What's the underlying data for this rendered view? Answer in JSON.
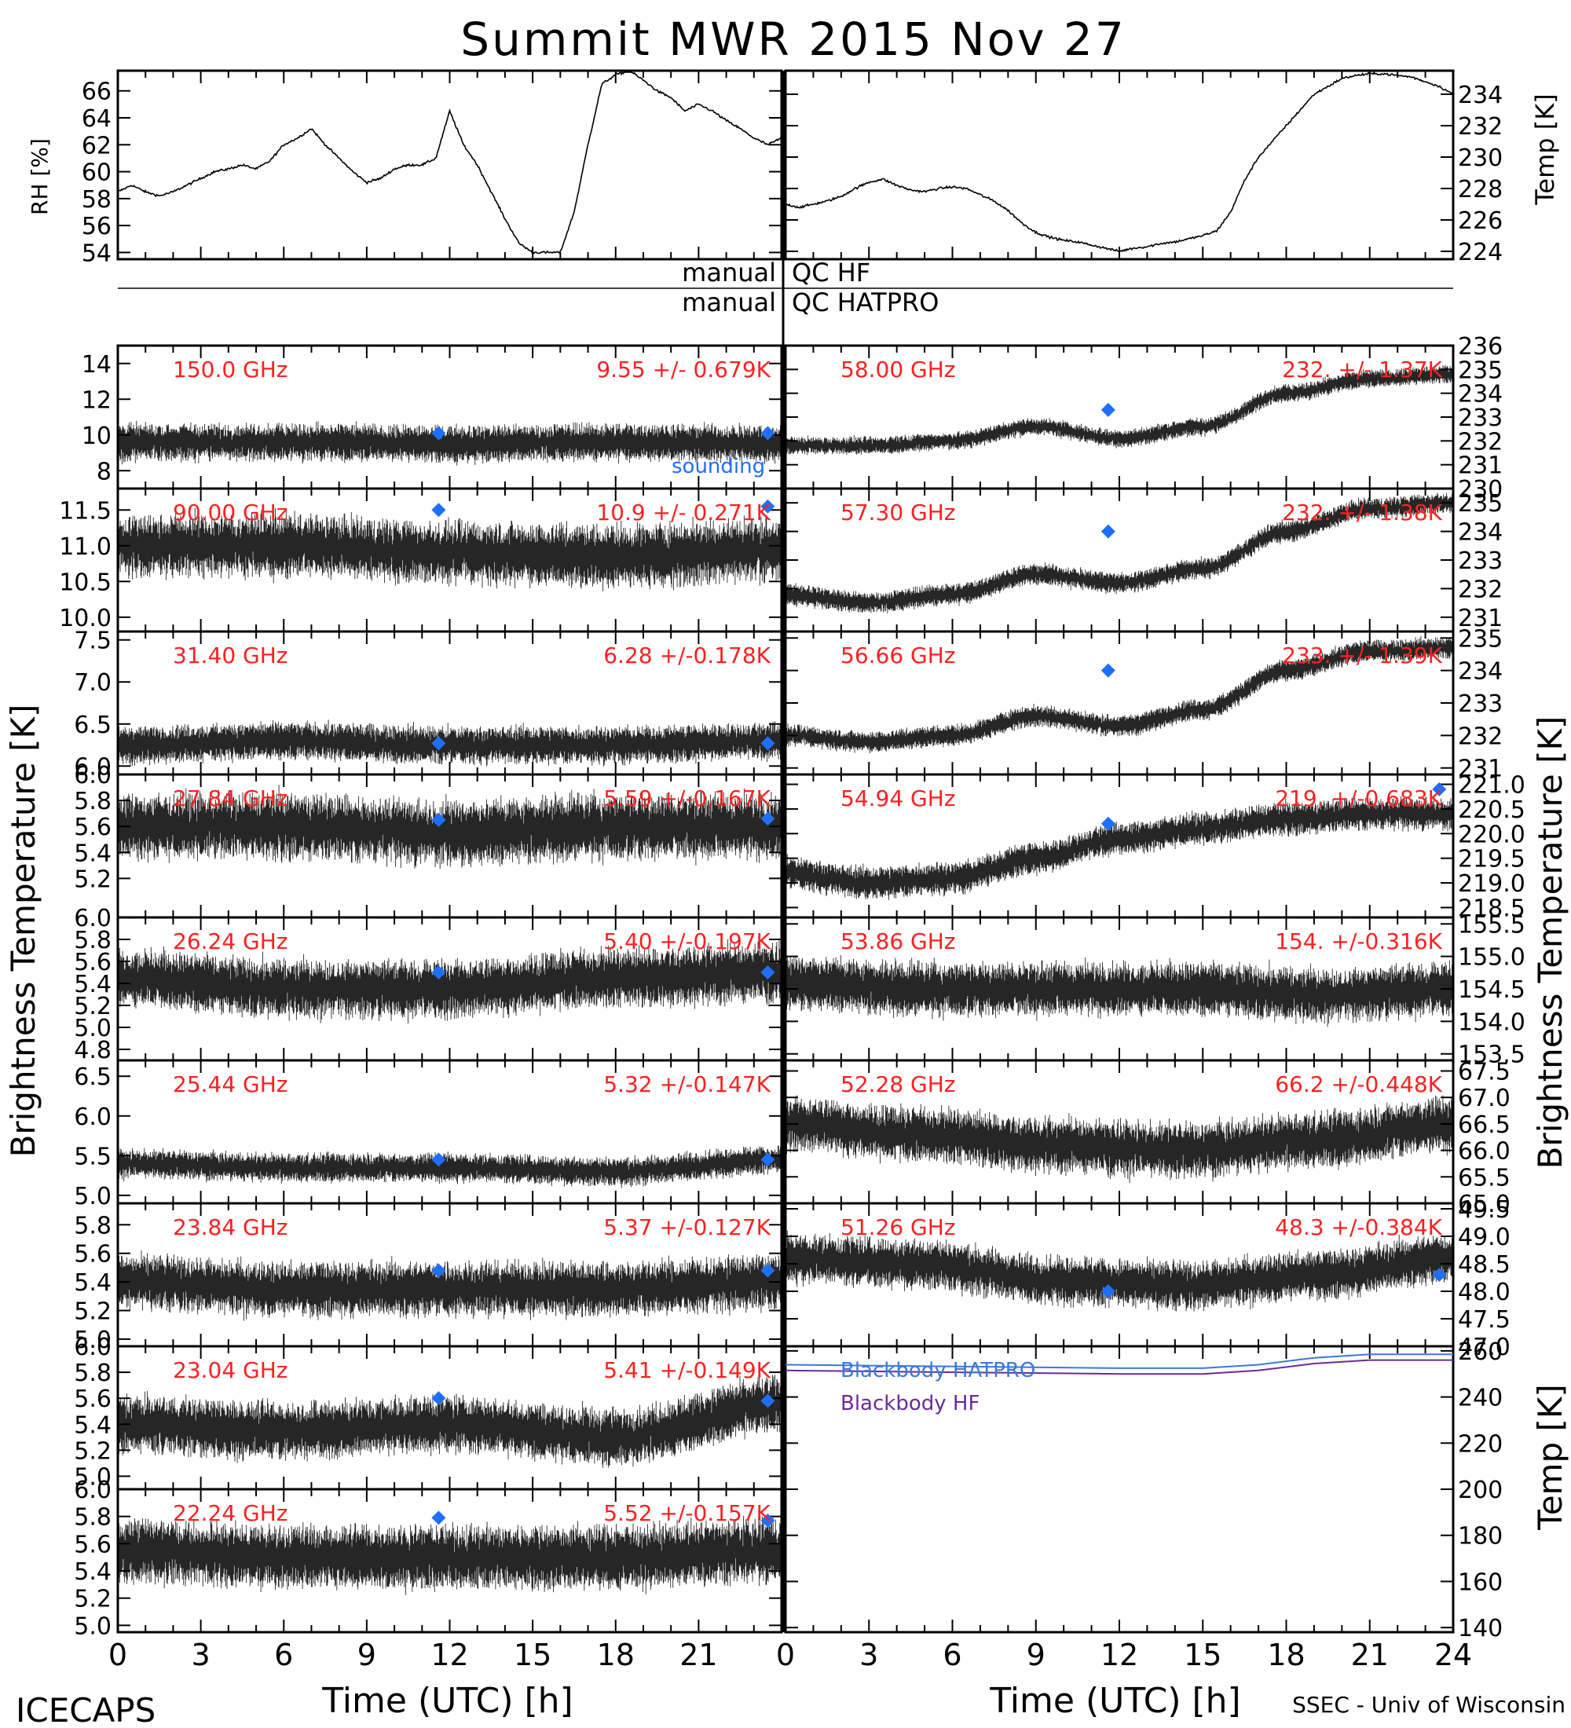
{
  "title": "Summit MWR 2015 Nov 27",
  "footer": {
    "left": "ICECAPS",
    "right": "SSEC - Univ of Wisconsin"
  },
  "colors": {
    "data": "#000000",
    "label": "#ff2020",
    "sounding": "#1f6fff",
    "bb_hatpro": "#3a7ad8",
    "bb_hf": "#6a2a9a"
  },
  "left_column_label": "Brightness Temperature [K]",
  "right_column_label": "Brightness Temperature [K]",
  "xaxis": {
    "label": "Time (UTC) [h]",
    "ticks": [
      "0",
      "3",
      "6",
      "9",
      "12",
      "15",
      "18",
      "21"
    ],
    "right_ticks": [
      "0",
      "3",
      "6",
      "9",
      "12",
      "15",
      "18",
      "21",
      "24"
    ]
  },
  "qc": {
    "hf_left": "manual",
    "hf_right": "QC HF",
    "hatpro_left": "manual",
    "hatpro_right": "QC HATPRO"
  },
  "sounding_label": "sounding",
  "chart_data": [
    {
      "type": "line",
      "name": "RH",
      "ylabel": "RH [%]",
      "ylim": [
        53.5,
        67.5
      ],
      "yticks": [
        "54",
        "56",
        "58",
        "60",
        "62",
        "64",
        "66"
      ],
      "xlim": [
        0,
        24
      ],
      "x": [
        0,
        0.5,
        1,
        1.5,
        2,
        2.5,
        3,
        3.5,
        4,
        4.5,
        5,
        5.5,
        6,
        6.5,
        7,
        7.5,
        8,
        8.5,
        9,
        9.5,
        10,
        10.5,
        11,
        11.5,
        12,
        12.5,
        13,
        13.5,
        14,
        14.5,
        15,
        15.5,
        16,
        16.5,
        17,
        17.5,
        18,
        18.5,
        19,
        19.5,
        20,
        20.5,
        21,
        21.5,
        22,
        22.5,
        23,
        23.5,
        24
      ],
      "y": [
        58.5,
        59,
        58.5,
        58.2,
        58.5,
        59,
        59.5,
        60,
        60.2,
        60.5,
        60.2,
        60.8,
        62,
        62.5,
        63.2,
        62,
        61,
        60,
        59.2,
        59.5,
        60.2,
        60.5,
        60.5,
        61,
        64.5,
        62,
        60.5,
        58.5,
        56.5,
        54.7,
        54,
        54,
        54,
        57,
        62,
        66.5,
        67.2,
        67.5,
        66.8,
        66,
        65.5,
        64.5,
        65,
        64.5,
        63.8,
        63.2,
        62.5,
        62,
        62.5
      ]
    },
    {
      "type": "line",
      "name": "Temp",
      "ylabel": "Temp [K]",
      "ylim": [
        223.5,
        235.5
      ],
      "yticks": [
        "224",
        "226",
        "228",
        "230",
        "232",
        "234"
      ],
      "xlim": [
        0,
        24
      ],
      "x": [
        0,
        0.5,
        1,
        1.5,
        2,
        2.5,
        3,
        3.5,
        4,
        4.5,
        5,
        5.5,
        6,
        6.5,
        7,
        7.5,
        8,
        8.5,
        9,
        9.5,
        10,
        10.5,
        11,
        11.5,
        12,
        12.5,
        13,
        13.5,
        14,
        14.5,
        15,
        15.5,
        16,
        16.5,
        17,
        17.5,
        18,
        18.5,
        19,
        19.5,
        20,
        20.5,
        21,
        21.5,
        22,
        22.5,
        23,
        23.5,
        24
      ],
      "y": [
        227,
        226.8,
        227,
        227.2,
        227.5,
        228,
        228.4,
        228.6,
        228.2,
        227.9,
        227.8,
        228,
        228.1,
        228,
        227.6,
        227.2,
        226.6,
        225.8,
        225.2,
        224.9,
        224.7,
        224.6,
        224.4,
        224.2,
        224,
        224.2,
        224.3,
        224.5,
        224.6,
        224.8,
        225,
        225.3,
        226.5,
        228.5,
        230,
        231,
        232,
        233,
        234,
        234.5,
        235,
        235.2,
        235.3,
        235.3,
        235.2,
        235.1,
        234.8,
        234.5,
        234
      ]
    },
    {
      "type": "scatter",
      "label": "150.0 GHz",
      "stat": "9.55 +/- 0.679K",
      "ylim": [
        7,
        15
      ],
      "yticks": [
        "8",
        "10",
        "12",
        "14"
      ],
      "xlim": [
        0,
        24
      ],
      "baseline": [
        9.6,
        9.6,
        9.5,
        9.6,
        9.5
      ],
      "noise": 0.7,
      "sounding": [
        [
          11.6,
          10.1
        ],
        [
          23.5,
          10.1
        ]
      ]
    },
    {
      "type": "scatter",
      "label": "90.00 GHz",
      "stat": "10.9 +/- 0.271K",
      "ylim": [
        9.8,
        11.8
      ],
      "yticks": [
        "10.0",
        "10.5",
        "11.0",
        "11.5"
      ],
      "xlim": [
        0,
        24
      ],
      "baseline": [
        11.0,
        11.0,
        10.9,
        10.85,
        10.95
      ],
      "noise": 0.3,
      "sounding": [
        [
          11.6,
          11.5
        ],
        [
          23.5,
          11.55
        ]
      ]
    },
    {
      "type": "scatter",
      "label": "31.40 GHz",
      "stat": "6.28 +/-0.178K",
      "ylim": [
        5.9,
        7.6
      ],
      "yticks": [
        "6.0",
        "6.5",
        "7.0",
        "7.5"
      ],
      "xlim": [
        0,
        24
      ],
      "baseline": [
        6.25,
        6.3,
        6.25,
        6.25,
        6.3
      ],
      "noise": 0.15,
      "sounding": [
        [
          11.6,
          6.27
        ],
        [
          23.5,
          6.27
        ]
      ]
    },
    {
      "type": "scatter",
      "label": "27.84 GHz",
      "stat": "5.59 +/-0.167K",
      "ylim": [
        4.9,
        6.0
      ],
      "yticks": [
        "5.2",
        "5.4",
        "5.6",
        "5.8",
        "6.0"
      ],
      "xlim": [
        0,
        24
      ],
      "baseline": [
        5.6,
        5.6,
        5.55,
        5.6,
        5.6
      ],
      "noise": 0.17,
      "sounding": [
        [
          11.6,
          5.65
        ],
        [
          23.5,
          5.66
        ]
      ]
    },
    {
      "type": "scatter",
      "label": "26.24 GHz",
      "stat": "5.40 +/-0.197K",
      "ylim": [
        4.7,
        6.0
      ],
      "yticks": [
        "4.8",
        "5.0",
        "5.2",
        "5.4",
        "5.6",
        "5.8",
        "6.0"
      ],
      "xlim": [
        0,
        24
      ],
      "baseline": [
        5.45,
        5.35,
        5.35,
        5.45,
        5.5
      ],
      "noise": 0.18,
      "sounding": [
        [
          11.6,
          5.5
        ],
        [
          23.5,
          5.5
        ]
      ]
    },
    {
      "type": "scatter",
      "label": "25.44 GHz",
      "stat": "5.32 +/-0.147K",
      "ylim": [
        4.9,
        6.7
      ],
      "yticks": [
        "5.0",
        "5.5",
        "6.0",
        "6.5"
      ],
      "xlim": [
        0,
        24
      ],
      "baseline": [
        5.4,
        5.35,
        5.35,
        5.3,
        5.45
      ],
      "noise": 0.12,
      "sounding": [
        [
          11.6,
          5.45
        ],
        [
          23.5,
          5.45
        ]
      ]
    },
    {
      "type": "scatter",
      "label": "23.84 GHz",
      "stat": "5.37 +/-0.127K",
      "ylim": [
        4.95,
        5.95
      ],
      "yticks": [
        "5.0",
        "5.2",
        "5.4",
        "5.6",
        "5.8"
      ],
      "xlim": [
        0,
        24
      ],
      "baseline": [
        5.4,
        5.35,
        5.35,
        5.35,
        5.4
      ],
      "noise": 0.13,
      "sounding": [
        [
          11.6,
          5.48
        ],
        [
          23.5,
          5.48
        ]
      ]
    },
    {
      "type": "scatter",
      "label": "23.04 GHz",
      "stat": "5.41 +/-0.149K",
      "ylim": [
        4.9,
        6.0
      ],
      "yticks": [
        "5.0",
        "5.2",
        "5.4",
        "5.6",
        "5.8",
        "6.0"
      ],
      "xlim": [
        0,
        24
      ],
      "baseline": [
        5.4,
        5.35,
        5.4,
        5.3,
        5.55
      ],
      "noise": 0.15,
      "sounding": [
        [
          11.6,
          5.6
        ],
        [
          23.5,
          5.58
        ]
      ]
    },
    {
      "type": "scatter",
      "label": "22.24 GHz",
      "stat": "5.52 +/-0.157K",
      "ylim": [
        4.95,
        6.0
      ],
      "yticks": [
        "5.0",
        "5.2",
        "5.4",
        "5.6",
        "5.8",
        "6.0"
      ],
      "xlim": [
        0,
        24
      ],
      "baseline": [
        5.55,
        5.5,
        5.5,
        5.5,
        5.55
      ],
      "noise": 0.16,
      "sounding": [
        [
          11.6,
          5.79
        ],
        [
          23.5,
          5.77
        ]
      ]
    },
    {
      "type": "scatter",
      "label": "58.00 GHz",
      "stat": "232. +/- 1.37K",
      "ylim": [
        230,
        236
      ],
      "yticks": [
        "230",
        "231",
        "232",
        "233",
        "234",
        "235",
        "236"
      ],
      "xlim": [
        0,
        24
      ],
      "baseline": [
        231.8,
        231.8,
        232.0,
        232.6,
        232.1,
        232.6,
        234.0,
        234.6,
        234.8
      ],
      "noise": 0.25,
      "sounding": [
        [
          11.6,
          233.3
        ]
      ]
    },
    {
      "type": "scatter",
      "label": "57.30 GHz",
      "stat": "232. +/- 1.38K",
      "ylim": [
        230.5,
        235.5
      ],
      "yticks": [
        "231",
        "232",
        "233",
        "234",
        "235"
      ],
      "xlim": [
        0,
        24
      ],
      "baseline": [
        231.8,
        231.5,
        231.8,
        232.5,
        232.2,
        232.7,
        234.0,
        234.8,
        235.0
      ],
      "noise": 0.25,
      "sounding": [
        [
          11.6,
          234.0
        ]
      ]
    },
    {
      "type": "scatter",
      "label": "56.66 GHz",
      "stat": "233. +/- 1.39K",
      "ylim": [
        230.8,
        235.2
      ],
      "yticks": [
        "231",
        "232",
        "233",
        "234",
        "235"
      ],
      "xlim": [
        0,
        24
      ],
      "baseline": [
        232.0,
        231.8,
        232.0,
        232.6,
        232.3,
        232.8,
        234.0,
        234.6,
        234.7
      ],
      "noise": 0.22,
      "sounding": [
        [
          11.6,
          234.0
        ]
      ]
    },
    {
      "type": "scatter",
      "label": "54.94 GHz",
      "stat": "219. +/-0.683K",
      "ylim": [
        218.3,
        221.2
      ],
      "yticks": [
        "218.5",
        "219.0",
        "219.5",
        "220.0",
        "220.5",
        "221.0"
      ],
      "xlim": [
        0,
        24
      ],
      "baseline": [
        219.2,
        219.0,
        219.1,
        219.5,
        219.9,
        220.1,
        220.3,
        220.4,
        220.4
      ],
      "noise": 0.22,
      "sounding": [
        [
          11.6,
          220.2
        ],
        [
          23.5,
          220.9
        ]
      ]
    },
    {
      "type": "scatter",
      "label": "53.86 GHz",
      "stat": "154. +/-0.316K",
      "ylim": [
        153.4,
        155.6
      ],
      "yticks": [
        "153.5",
        "154.0",
        "154.5",
        "155.0",
        "155.5"
      ],
      "xlim": [
        0,
        24
      ],
      "baseline": [
        154.6,
        154.5,
        154.5,
        154.5,
        154.4,
        154.5
      ],
      "noise": 0.28,
      "sounding": []
    },
    {
      "type": "scatter",
      "label": "52.28 GHz",
      "stat": "66.2 +/-0.448K",
      "ylim": [
        65.0,
        67.7
      ],
      "yticks": [
        "65.0",
        "65.5",
        "66.0",
        "66.5",
        "67.0",
        "67.5"
      ],
      "xlim": [
        0,
        24
      ],
      "baseline": [
        66.5,
        66.3,
        66.1,
        66.0,
        66.2,
        66.5
      ],
      "noise": 0.35,
      "sounding": []
    },
    {
      "type": "scatter",
      "label": "51.26 GHz",
      "stat": "48.3 +/-0.384K",
      "ylim": [
        47.0,
        49.6
      ],
      "yticks": [
        "47.0",
        "47.5",
        "48.0",
        "48.5",
        "49.0",
        "49.5"
      ],
      "xlim": [
        0,
        24
      ],
      "baseline": [
        48.6,
        48.5,
        48.2,
        48.1,
        48.3,
        48.6
      ],
      "noise": 0.3,
      "sounding": [
        [
          11.6,
          48.0
        ],
        [
          23.5,
          48.3
        ]
      ]
    },
    {
      "type": "line",
      "name": "Blackbody",
      "ylabel": "Temp [K]",
      "ylim": [
        138,
        262
      ],
      "yticks": [
        "140",
        "160",
        "180",
        "200",
        "220",
        "240",
        "260"
      ],
      "xlim": [
        0,
        24
      ],
      "series": [
        {
          "name": "Blackbody HATPRO",
          "x": [
            0,
            4,
            8,
            12,
            15,
            17,
            19,
            21,
            24
          ],
          "y": [
            254,
            253.5,
            253,
            252.5,
            252.5,
            254,
            257,
            258.5,
            258.5
          ]
        },
        {
          "name": "Blackbody HF",
          "x": [
            0,
            4,
            8,
            12,
            15,
            17,
            19,
            21,
            24
          ],
          "y": [
            251.5,
            251,
            250.5,
            250,
            250,
            251.5,
            254.5,
            256,
            256
          ]
        }
      ]
    }
  ]
}
